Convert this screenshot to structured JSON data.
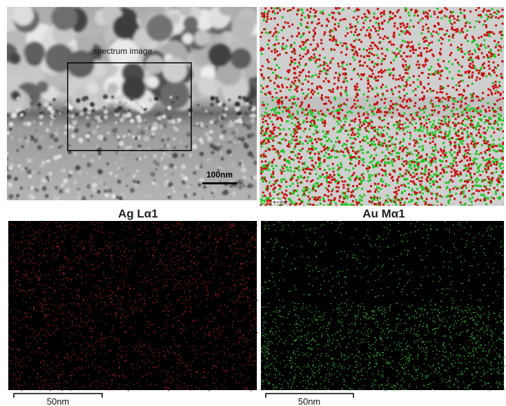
{
  "panels": {
    "sem": {
      "label": "spectrum image",
      "scale": "100nm"
    },
    "overlay": {
      "legend": [
        "Ag",
        "Au",
        "电子图像"
      ]
    },
    "ag": {
      "title": "Ag Lα1",
      "scale": "50nm"
    },
    "au": {
      "title": "Au Mα1",
      "scale": "50nm"
    }
  }
}
